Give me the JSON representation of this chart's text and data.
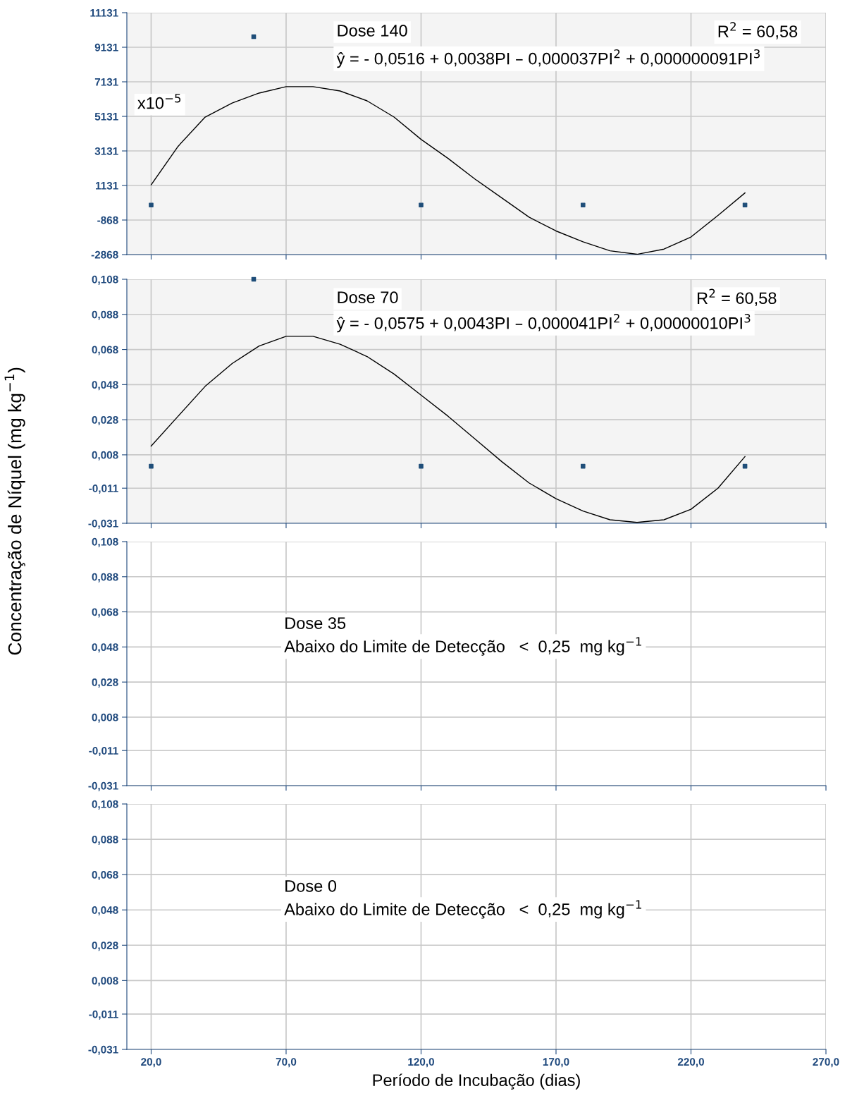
{
  "chart_data": [
    {
      "type": "line",
      "xlim": [
        11,
        270
      ],
      "xticks": [
        20,
        70,
        120,
        170,
        220,
        270
      ],
      "ylim": [
        -2868,
        11131
      ],
      "yticks": [
        -2868,
        -868,
        1131,
        3131,
        5131,
        7131,
        9131,
        11131
      ],
      "tick_labels": "y",
      "grid": true,
      "annotations": [
        "Dose 140",
        "R$^{2}$ = 60,58",
        "ŷ = - 0,0516 + 0,0038PI – 0,000037PI$^{2}$ + 0,000000091PI$^{3}$",
        "x10$^{−5}$"
      ],
      "series": [
        {
          "color": "#000000",
          "marker": "none",
          "x": [
            20,
            30,
            40,
            50,
            60,
            70,
            80,
            90,
            100,
            110,
            120,
            130,
            140,
            150,
            160,
            170,
            180,
            190,
            200,
            210,
            220,
            230,
            240
          ],
          "values": [
            1170,
            3400,
            5090,
            5900,
            6480,
            6850,
            6850,
            6600,
            6030,
            5090,
            3800,
            2700,
            1500,
            400,
            -700,
            -1500,
            -2130,
            -2650,
            -2850,
            -2550,
            -1850,
            -600,
            700
          ]
        },
        {
          "type": "scatter",
          "color": "#1f4e79",
          "marker": "square",
          "x": [
            20,
            58,
            120,
            180,
            240
          ],
          "values": [
            0,
            9740,
            0,
            0,
            0
          ]
        }
      ]
    },
    {
      "type": "line",
      "ylabel": "Concentração de Níquel (mg kg$^{−1}$)",
      "xlim": [
        11,
        270
      ],
      "xticks": [
        20,
        70,
        120,
        170,
        220,
        270
      ],
      "ylim": [
        -0.031,
        0.108
      ],
      "yticks": [
        {
          "value": -0.031,
          "label": "-0,031"
        },
        {
          "value": -0.011,
          "label": "-0,011"
        },
        {
          "value": 0.008,
          "label": "0,008"
        },
        {
          "value": 0.028,
          "label": "0,028"
        },
        {
          "value": 0.048,
          "label": "0,048"
        },
        {
          "value": 0.068,
          "label": "0,068"
        },
        {
          "value": 0.088,
          "label": "0,088"
        },
        {
          "value": 0.108,
          "label": "0,108"
        }
      ],
      "tick_labels": "y",
      "grid": true,
      "annotations": [
        "Dose 70",
        "R$^{2}$ = 60,58",
        "ŷ = - 0,0575 + 0,0043PI – 0,000041PI$^{2}$ + 0,00000010PI$^{3}$"
      ],
      "series": [
        {
          "color": "#000000",
          "marker": "none",
          "x": [
            20,
            30,
            40,
            50,
            60,
            70,
            80,
            90,
            100,
            110,
            120,
            130,
            140,
            150,
            160,
            170,
            180,
            190,
            200,
            210,
            220,
            230,
            240
          ],
          "values": [
            0.013,
            0.03,
            0.047,
            0.06,
            0.07,
            0.0755,
            0.0755,
            0.071,
            0.064,
            0.054,
            0.042,
            0.03,
            0.017,
            0.004,
            -0.008,
            -0.017,
            -0.024,
            -0.029,
            -0.0305,
            -0.029,
            -0.023,
            -0.011,
            0.007
          ]
        },
        {
          "type": "scatter",
          "color": "#1f4e79",
          "marker": "square",
          "x": [
            20,
            58,
            120,
            180,
            240
          ],
          "values": [
            0.0015,
            0.108,
            0.0015,
            0.0015,
            0.0015
          ]
        }
      ]
    },
    {
      "type": "line",
      "xlim": [
        11,
        270
      ],
      "xticks": [
        20,
        70,
        120,
        170,
        220,
        270
      ],
      "ylim": [
        -0.031,
        0.108
      ],
      "yticks": [
        {
          "value": -0.031,
          "label": "-0,031"
        },
        {
          "value": -0.011,
          "label": "-0,011"
        },
        {
          "value": 0.008,
          "label": "0,008"
        },
        {
          "value": 0.028,
          "label": "0,028"
        },
        {
          "value": 0.048,
          "label": "0,048"
        },
        {
          "value": 0.068,
          "label": "0,068"
        },
        {
          "value": 0.088,
          "label": "0,088"
        },
        {
          "value": 0.108,
          "label": "0,108"
        }
      ],
      "tick_labels": "y",
      "grid": true,
      "annotations": [
        "Dose 35",
        "Abaixo do Limite de Detecção   <  0,25  mg kg$^{−1}$"
      ]
    },
    {
      "type": "line",
      "xlabel": "Período de Incubação (dias)",
      "xlim": [
        11,
        270
      ],
      "xticks": [
        {
          "value": 20,
          "label": "20,0"
        },
        {
          "value": 70,
          "label": "70,0"
        },
        {
          "value": 120,
          "label": "120,0"
        },
        {
          "value": 170,
          "label": "170,0"
        },
        {
          "value": 220,
          "label": "220,0"
        },
        {
          "value": 270,
          "label": "270,0"
        }
      ],
      "ylim": [
        -0.031,
        0.108
      ],
      "yticks": [
        {
          "value": -0.031,
          "label": "-0,031"
        },
        {
          "value": -0.011,
          "label": "-0,011"
        },
        {
          "value": 0.008,
          "label": "0,008"
        },
        {
          "value": 0.028,
          "label": "0,028"
        },
        {
          "value": 0.048,
          "label": "0,048"
        },
        {
          "value": 0.068,
          "label": "0,068"
        },
        {
          "value": 0.088,
          "label": "0,088"
        },
        {
          "value": 0.108,
          "label": "0,108"
        }
      ],
      "grid": true,
      "annotations": [
        "Dose 0",
        "Abaixo do Limite de Detecção   <  0,25  mg kg$^{−1}$"
      ]
    }
  ]
}
